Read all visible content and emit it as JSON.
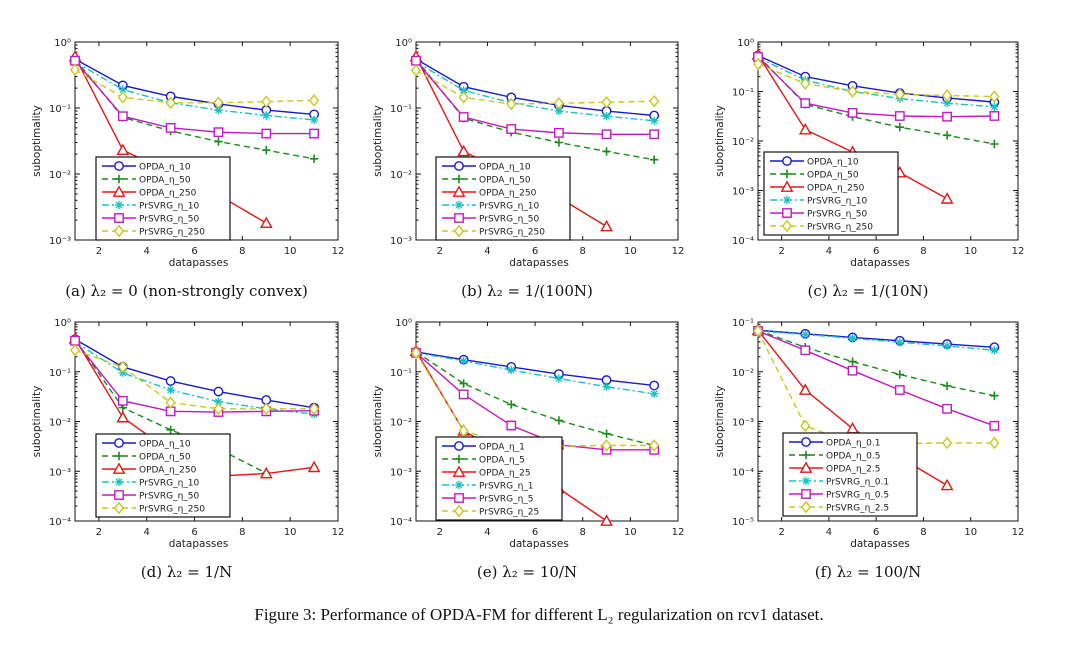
{
  "figure_caption": "Figure 3: Performance of OPDA-FM for different L₂ regularization on rcv1 dataset.",
  "series_styles": {
    "OPDA_1": {
      "color": "#1a1acc",
      "marker": "circle",
      "dash": "solid"
    },
    "OPDA_2": {
      "color": "#1a8a1a",
      "marker": "plus",
      "dash": "dashed"
    },
    "OPDA_3": {
      "color": "#e01818",
      "marker": "triangle",
      "dash": "solid"
    },
    "PrSVRG_1": {
      "color": "#19c2c2",
      "marker": "star",
      "dash": "dashdot"
    },
    "PrSVRG_2": {
      "color": "#c21ac2",
      "marker": "square",
      "dash": "solid"
    },
    "PrSVRG_3": {
      "color": "#c8c81e",
      "marker": "diamond",
      "dash": "dashed"
    }
  },
  "chart_data": [
    {
      "id": "a",
      "type": "line",
      "caption": "(a) λ₂ = 0 (non-strongly convex)",
      "xlabel": "datapasses",
      "ylabel": "suboptimality",
      "xlim": [
        1,
        12
      ],
      "xticks": [
        2,
        4,
        6,
        8,
        10,
        12
      ],
      "yscale": "log",
      "ylim_exp": [
        -3,
        0
      ],
      "legend_position": "lower-left",
      "x": [
        1,
        3,
        5,
        7,
        9,
        11
      ],
      "series": [
        {
          "name": "OPDA_η_10",
          "style": "OPDA_1",
          "values": [
            0.55,
            0.22,
            0.15,
            0.115,
            0.093,
            0.08
          ]
        },
        {
          "name": "OPDA_η_50",
          "style": "OPDA_2",
          "values": [
            0.55,
            0.072,
            0.045,
            0.031,
            0.023,
            0.017
          ]
        },
        {
          "name": "OPDA_η_250",
          "style": "OPDA_3",
          "values": [
            0.6,
            0.023,
            0.0105,
            0.0048,
            0.0018,
            null
          ]
        },
        {
          "name": "PrSVRG_η_10",
          "style": "PrSVRG_1",
          "values": [
            0.5,
            0.19,
            0.12,
            0.093,
            0.077,
            0.066
          ]
        },
        {
          "name": "PrSVRG_η_50",
          "style": "PrSVRG_2",
          "values": [
            0.52,
            0.075,
            0.05,
            0.043,
            0.041,
            0.041
          ]
        },
        {
          "name": "PrSVRG_η_250",
          "style": "PrSVRG_3",
          "values": [
            0.38,
            0.145,
            0.12,
            0.12,
            0.125,
            0.13
          ]
        }
      ]
    },
    {
      "id": "b",
      "type": "line",
      "caption": "(b) λ₂ = 1/(100N)",
      "xlabel": "datapasses",
      "ylabel": "suboptimality",
      "xlim": [
        1,
        12
      ],
      "xticks": [
        2,
        4,
        6,
        8,
        10,
        12
      ],
      "yscale": "log",
      "ylim_exp": [
        -3,
        0
      ],
      "legend_position": "lower-left",
      "x": [
        1,
        3,
        5,
        7,
        9,
        11
      ],
      "series": [
        {
          "name": "OPDA_η_10",
          "style": "OPDA_1",
          "values": [
            0.55,
            0.21,
            0.145,
            0.11,
            0.09,
            0.077
          ]
        },
        {
          "name": "OPDA_η_50",
          "style": "OPDA_2",
          "values": [
            0.55,
            0.07,
            0.043,
            0.03,
            0.022,
            0.0165
          ]
        },
        {
          "name": "OPDA_η_250",
          "style": "OPDA_3",
          "values": [
            0.6,
            0.022,
            0.0095,
            0.0044,
            0.0016,
            null
          ]
        },
        {
          "name": "PrSVRG_η_10",
          "style": "PrSVRG_1",
          "values": [
            0.5,
            0.185,
            0.12,
            0.09,
            0.075,
            0.064
          ]
        },
        {
          "name": "PrSVRG_η_50",
          "style": "PrSVRG_2",
          "values": [
            0.52,
            0.073,
            0.048,
            0.042,
            0.04,
            0.04
          ]
        },
        {
          "name": "PrSVRG_η_250",
          "style": "PrSVRG_3",
          "values": [
            0.37,
            0.145,
            0.115,
            0.118,
            0.122,
            0.127
          ]
        }
      ]
    },
    {
      "id": "c",
      "type": "line",
      "caption": "(c) λ₂ = 1/(10N)",
      "xlabel": "datapasses",
      "ylabel": "suboptimality",
      "xlim": [
        1,
        12
      ],
      "xticks": [
        2,
        4,
        6,
        8,
        10,
        12
      ],
      "yscale": "log",
      "ylim_exp": [
        -4,
        0
      ],
      "legend_position": "lower-left",
      "x": [
        1,
        3,
        5,
        7,
        9,
        11
      ],
      "series": [
        {
          "name": "OPDA_η_10",
          "style": "OPDA_1",
          "values": [
            0.53,
            0.2,
            0.13,
            0.093,
            0.074,
            0.061
          ]
        },
        {
          "name": "OPDA_η_50",
          "style": "OPDA_2",
          "values": [
            0.53,
            0.055,
            0.031,
            0.019,
            0.013,
            0.0087
          ]
        },
        {
          "name": "OPDA_η_250",
          "style": "OPDA_3",
          "values": [
            0.55,
            0.017,
            0.006,
            0.0023,
            0.00068,
            null
          ]
        },
        {
          "name": "PrSVRG_η_10",
          "style": "PrSVRG_1",
          "values": [
            0.48,
            0.17,
            0.1,
            0.072,
            0.058,
            0.049
          ]
        },
        {
          "name": "PrSVRG_η_50",
          "style": "PrSVRG_2",
          "values": [
            0.5,
            0.058,
            0.037,
            0.032,
            0.031,
            0.032
          ]
        },
        {
          "name": "PrSVRG_η_250",
          "style": "PrSVRG_3",
          "values": [
            0.36,
            0.145,
            0.1,
            0.088,
            0.083,
            0.079
          ]
        }
      ]
    },
    {
      "id": "d",
      "type": "line",
      "caption": "(d) λ₂ = 1/N",
      "xlabel": "datapasses",
      "ylabel": "suboptimality",
      "xlim": [
        1,
        12
      ],
      "xticks": [
        2,
        4,
        6,
        8,
        10,
        12
      ],
      "yscale": "log",
      "ylim_exp": [
        -4,
        0
      ],
      "legend_position": "lower-left",
      "x": [
        1,
        3,
        5,
        7,
        9,
        11
      ],
      "series": [
        {
          "name": "OPDA_η_10",
          "style": "OPDA_1",
          "values": [
            0.45,
            0.125,
            0.065,
            0.04,
            0.027,
            0.019
          ]
        },
        {
          "name": "OPDA_η_50",
          "style": "OPDA_2",
          "values": [
            0.45,
            0.019,
            0.0068,
            0.0028,
            0.00092,
            null
          ]
        },
        {
          "name": "OPDA_η_250",
          "style": "OPDA_3",
          "values": [
            0.46,
            0.012,
            0.0025,
            0.0008,
            0.0009,
            0.0012
          ]
        },
        {
          "name": "PrSVRG_η_10",
          "style": "PrSVRG_1",
          "values": [
            0.4,
            0.095,
            0.043,
            0.025,
            0.018,
            0.014
          ]
        },
        {
          "name": "PrSVRG_η_50",
          "style": "PrSVRG_2",
          "values": [
            0.42,
            0.026,
            0.016,
            0.0155,
            0.016,
            0.0165
          ]
        },
        {
          "name": "PrSVRG_η_250",
          "style": "PrSVRG_3",
          "values": [
            0.27,
            0.125,
            0.024,
            0.018,
            0.018,
            0.018
          ]
        }
      ]
    },
    {
      "id": "e",
      "type": "line",
      "caption": "(e) λ₂ = 10/N",
      "xlabel": "datapasses",
      "ylabel": "suboptimality",
      "xlim": [
        1,
        12
      ],
      "xticks": [
        2,
        4,
        6,
        8,
        10,
        12
      ],
      "yscale": "log",
      "ylim_exp": [
        -4,
        0
      ],
      "legend_position": "lower-left",
      "x": [
        1,
        3,
        5,
        7,
        9,
        11
      ],
      "series": [
        {
          "name": "OPDA_η_1",
          "style": "OPDA_1",
          "values": [
            0.25,
            0.175,
            0.125,
            0.09,
            0.068,
            0.053
          ]
        },
        {
          "name": "OPDA_η_5",
          "style": "OPDA_2",
          "values": [
            0.25,
            0.058,
            0.022,
            0.0105,
            0.0057,
            0.0033
          ]
        },
        {
          "name": "OPDA_η_25",
          "style": "OPDA_3",
          "values": [
            0.26,
            0.0065,
            0.0019,
            0.00045,
            0.0001,
            null
          ]
        },
        {
          "name": "PrSVRG_η_1",
          "style": "PrSVRG_1",
          "values": [
            0.24,
            0.165,
            0.108,
            0.073,
            0.05,
            0.036
          ]
        },
        {
          "name": "PrSVRG_η_5",
          "style": "PrSVRG_2",
          "values": [
            0.24,
            0.035,
            0.0083,
            0.0034,
            0.0027,
            0.0027
          ]
        },
        {
          "name": "PrSVRG_η_25",
          "style": "PrSVRG_3",
          "values": [
            0.24,
            0.0065,
            0.0033,
            0.0032,
            0.0033,
            0.0033
          ]
        }
      ]
    },
    {
      "id": "f",
      "type": "line",
      "caption": "(f) λ₂ = 100/N",
      "xlabel": "datapasses",
      "ylabel": "suboptimality",
      "xlim": [
        1,
        12
      ],
      "xticks": [
        2,
        4,
        6,
        8,
        10,
        12
      ],
      "yscale": "log",
      "ylim_exp": [
        -5,
        -1
      ],
      "legend_position": "lower-left",
      "x": [
        1,
        3,
        5,
        7,
        9,
        11
      ],
      "series": [
        {
          "name": "OPDA_η_0.1",
          "style": "OPDA_1",
          "values": [
            0.068,
            0.058,
            0.049,
            0.042,
            0.036,
            0.031
          ]
        },
        {
          "name": "OPDA_η_0.5",
          "style": "OPDA_2",
          "values": [
            0.068,
            0.031,
            0.016,
            0.0088,
            0.0052,
            0.0033
          ]
        },
        {
          "name": "OPDA_η_2.5",
          "style": "OPDA_3",
          "values": [
            0.068,
            0.0043,
            0.00072,
            0.00019,
            5.2e-05,
            null
          ]
        },
        {
          "name": "PrSVRG_η_0.1",
          "style": "PrSVRG_1",
          "values": [
            0.066,
            0.056,
            0.047,
            0.039,
            0.033,
            0.027
          ]
        },
        {
          "name": "PrSVRG_η_0.5",
          "style": "PrSVRG_2",
          "values": [
            0.066,
            0.027,
            0.0105,
            0.0043,
            0.0018,
            0.00082
          ]
        },
        {
          "name": "PrSVRG_η_2.5",
          "style": "PrSVRG_3",
          "values": [
            0.066,
            0.00082,
            0.00036,
            0.00036,
            0.00037,
            0.00037
          ]
        }
      ]
    }
  ]
}
